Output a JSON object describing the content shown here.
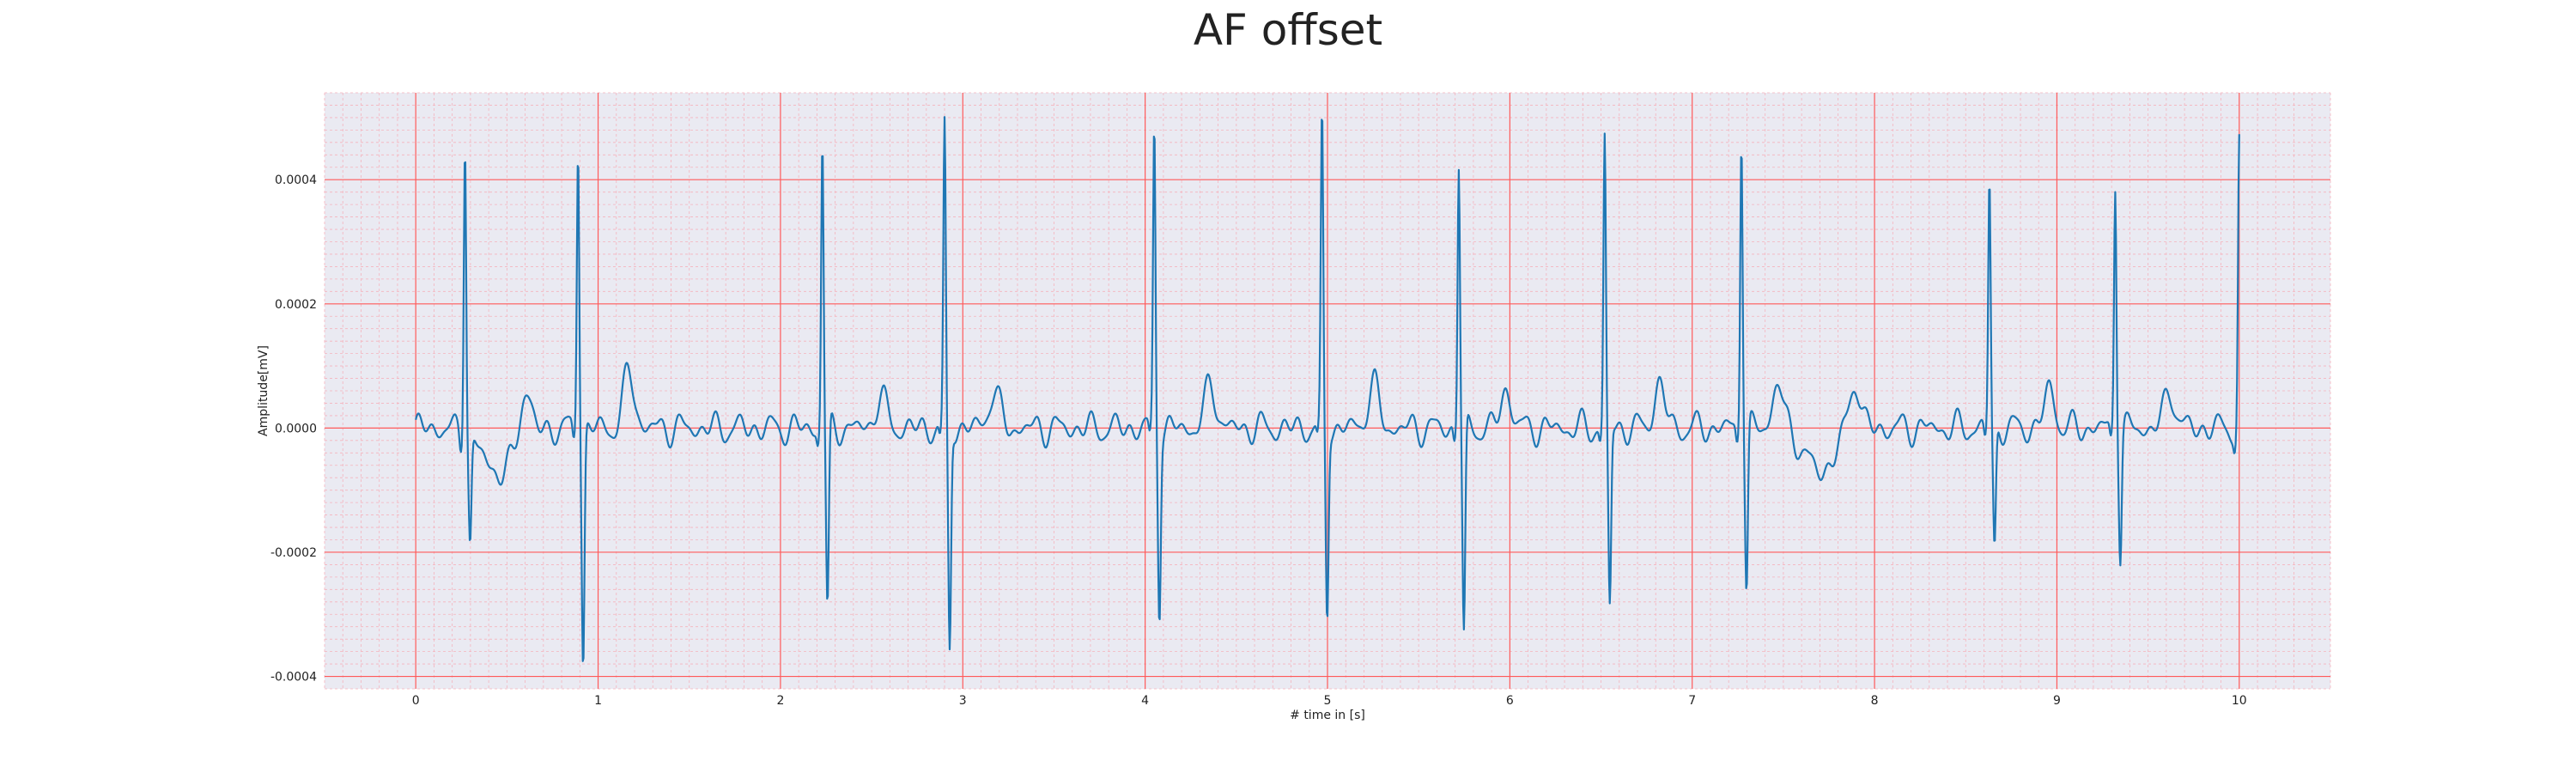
{
  "chart_data": {
    "type": "line",
    "title": "AF offset",
    "xlabel": "# time in [s]",
    "ylabel": "Amplitude[mV]",
    "xlim": [
      -0.5,
      10.5
    ],
    "ylim": [
      -0.00042,
      0.00054
    ],
    "x_ticks": [
      0,
      1,
      2,
      3,
      4,
      5,
      6,
      7,
      8,
      9,
      10
    ],
    "y_ticks": [
      -0.0004,
      -0.0002,
      0.0,
      0.0002,
      0.0004
    ],
    "y_tick_labels": [
      "-0.0004",
      "-0.0002",
      "0.0000",
      "0.0002",
      "0.0004"
    ],
    "grid": true,
    "minor_grid": true,
    "colors": {
      "background": "#eaeaf2",
      "major_grid": "#ff5a5a",
      "minor_grid": "#f5b3bd",
      "line": "#1f77b4"
    },
    "qrs_beats": [
      {
        "t": 0.27,
        "r": 0.00049,
        "s": -0.00017
      },
      {
        "t": 0.89,
        "r": 0.000465,
        "s": -0.00038
      },
      {
        "t": 2.23,
        "r": 0.000465,
        "s": -0.0003
      },
      {
        "t": 2.9,
        "r": 0.00048,
        "s": -0.00036
      },
      {
        "t": 4.05,
        "r": 0.000485,
        "s": -0.00029
      },
      {
        "t": 4.97,
        "r": 0.000495,
        "s": -0.0003
      },
      {
        "t": 5.72,
        "r": 0.00043,
        "s": -0.00034
      },
      {
        "t": 6.52,
        "r": 0.000465,
        "s": -0.00029
      },
      {
        "t": 7.27,
        "r": 0.000485,
        "s": -0.00026
      },
      {
        "t": 8.63,
        "r": 0.000405,
        "s": -0.0002
      },
      {
        "t": 9.32,
        "r": 0.0004,
        "s": -0.0002
      },
      {
        "t": 10.0,
        "r": 0.00046,
        "s": -7e-05
      }
    ],
    "t_waves": [
      {
        "t": 0.6,
        "a": 9e-05
      },
      {
        "t": 1.17,
        "a": 9e-05
      },
      {
        "t": 2.55,
        "a": 5e-05
      },
      {
        "t": 3.17,
        "a": 6e-05
      },
      {
        "t": 4.36,
        "a": 7e-05
      },
      {
        "t": 5.25,
        "a": 7e-05
      },
      {
        "t": 5.98,
        "a": 6e-05
      },
      {
        "t": 6.82,
        "a": 7e-05
      },
      {
        "t": 7.47,
        "a": 7e-05
      },
      {
        "t": 7.89,
        "a": 8e-05
      },
      {
        "t": 8.96,
        "a": 6e-05
      },
      {
        "t": 9.62,
        "a": 6e-05
      }
    ],
    "baseline_dips": [
      {
        "t": 0.46,
        "a": -7e-05,
        "w": 0.1
      },
      {
        "t": 7.7,
        "a": -7e-05,
        "w": 0.08
      }
    ],
    "sample_step_s": 0.004
  }
}
